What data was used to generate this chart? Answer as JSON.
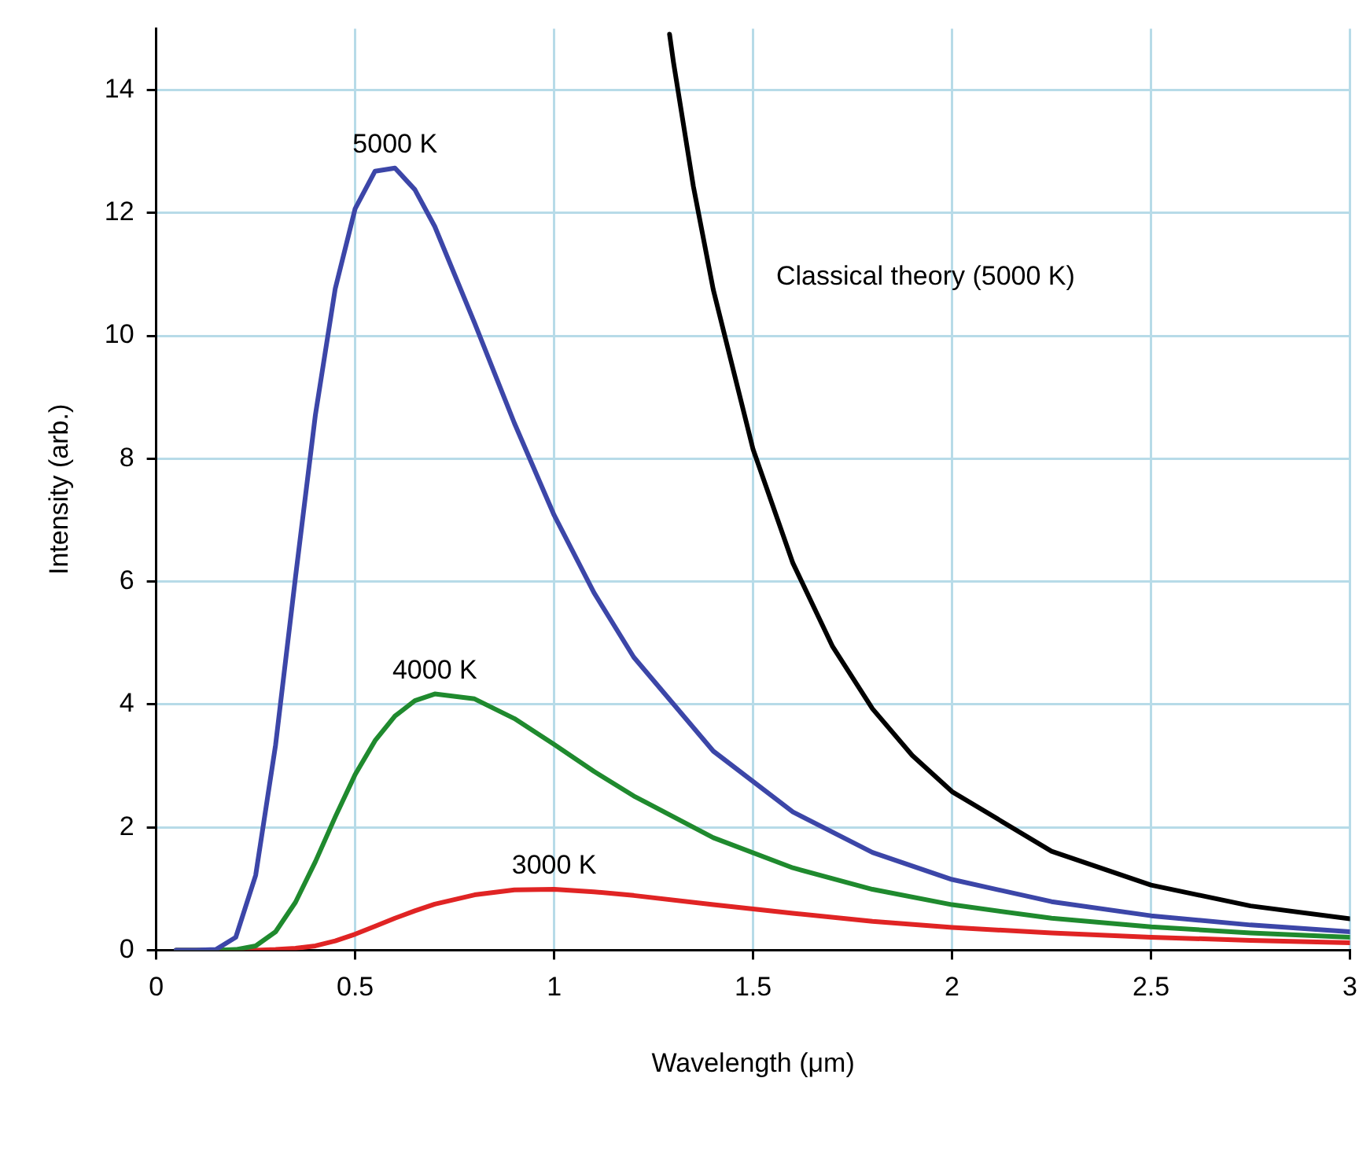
{
  "chart_data": {
    "type": "line",
    "xlabel": "Wavelength (μm)",
    "ylabel": "Intensity (arb.)",
    "xlim": [
      0,
      3
    ],
    "ylim": [
      0,
      15
    ],
    "xticks": [
      0,
      0.5,
      1,
      1.5,
      2,
      2.5,
      3
    ],
    "yticks": [
      0,
      2,
      4,
      6,
      8,
      10,
      12,
      14
    ],
    "grid": true,
    "legend": false,
    "marker": "none",
    "line_style": "solid",
    "series": [
      {
        "name": "5000 K",
        "color": "#3c46a8",
        "x": [
          0.05,
          0.1,
          0.15,
          0.2,
          0.25,
          0.3,
          0.35,
          0.4,
          0.45,
          0.5,
          0.55,
          0.6,
          0.65,
          0.7,
          0.8,
          0.9,
          1.0,
          1.1,
          1.2,
          1.4,
          1.6,
          1.8,
          2.0,
          2.25,
          2.5,
          2.75,
          3.0
        ],
        "values": [
          0,
          0,
          0.01,
          0.21,
          1.22,
          3.34,
          6.07,
          8.71,
          10.77,
          12.07,
          12.68,
          12.73,
          12.38,
          11.78,
          10.21,
          8.58,
          7.08,
          5.82,
          4.77,
          3.24,
          2.25,
          1.59,
          1.15,
          0.79,
          0.56,
          0.41,
          0.3
        ]
      },
      {
        "name": "4000 K",
        "color": "#1f8a2e",
        "x": [
          0.05,
          0.1,
          0.15,
          0.2,
          0.25,
          0.3,
          0.35,
          0.4,
          0.45,
          0.5,
          0.55,
          0.6,
          0.65,
          0.7,
          0.8,
          0.9,
          1.0,
          1.1,
          1.2,
          1.4,
          1.6,
          1.8,
          2.0,
          2.25,
          2.5,
          2.75,
          3.0
        ],
        "values": [
          0,
          0,
          0,
          0.01,
          0.07,
          0.3,
          0.78,
          1.44,
          2.17,
          2.86,
          3.41,
          3.81,
          4.06,
          4.17,
          4.09,
          3.77,
          3.35,
          2.91,
          2.51,
          1.83,
          1.34,
          0.99,
          0.74,
          0.52,
          0.38,
          0.28,
          0.21
        ]
      },
      {
        "name": "3000 K",
        "color": "#e02424",
        "x": [
          0.05,
          0.1,
          0.2,
          0.25,
          0.3,
          0.35,
          0.4,
          0.45,
          0.5,
          0.55,
          0.6,
          0.65,
          0.7,
          0.8,
          0.9,
          1.0,
          1.1,
          1.2,
          1.4,
          1.6,
          1.8,
          2.0,
          2.25,
          2.5,
          2.75,
          3.0
        ],
        "values": [
          0,
          0,
          0,
          0,
          0.01,
          0.03,
          0.07,
          0.15,
          0.26,
          0.39,
          0.52,
          0.64,
          0.75,
          0.9,
          0.98,
          0.99,
          0.95,
          0.89,
          0.74,
          0.6,
          0.47,
          0.37,
          0.28,
          0.21,
          0.16,
          0.12
        ]
      },
      {
        "name": "Classical theory (5000 K)",
        "color": "#000000",
        "x": [
          1.29,
          1.3,
          1.35,
          1.4,
          1.5,
          1.6,
          1.7,
          1.8,
          1.9,
          2.0,
          2.25,
          2.5,
          2.75,
          3.0
        ],
        "values": [
          14.91,
          14.45,
          12.43,
          10.75,
          8.15,
          6.3,
          4.94,
          3.93,
          3.17,
          2.58,
          1.61,
          1.06,
          0.72,
          0.51
        ]
      }
    ]
  }
}
